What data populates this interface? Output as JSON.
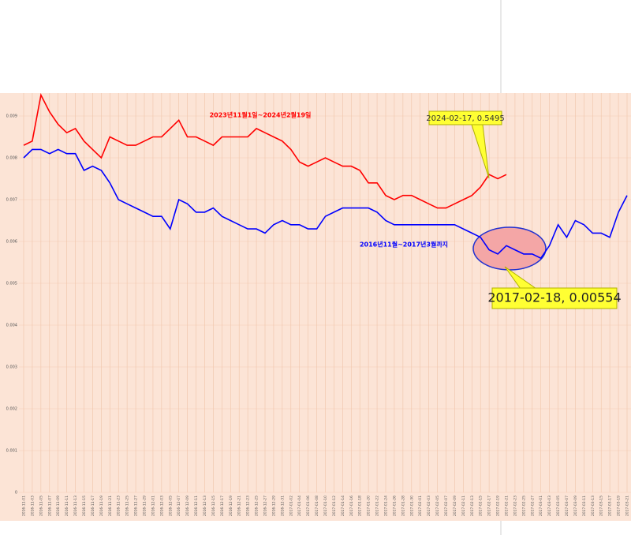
{
  "chart_data": {
    "type": "line",
    "categories": [
      "2016-11-01",
      "2016-11-03",
      "2016-11-05",
      "2016-11-07",
      "2016-11-09",
      "2016-11-11",
      "2016-11-13",
      "2016-11-15",
      "2016-11-17",
      "2016-11-19",
      "2016-11-21",
      "2016-11-23",
      "2016-11-25",
      "2016-11-27",
      "2016-11-29",
      "2016-12-01",
      "2016-12-03",
      "2016-12-05",
      "2016-12-07",
      "2016-12-09",
      "2016-12-11",
      "2016-12-13",
      "2016-12-15",
      "2016-12-17",
      "2016-12-19",
      "2016-12-21",
      "2016-12-23",
      "2016-12-25",
      "2016-12-27",
      "2016-12-29",
      "2016-12-31",
      "2017-01-02",
      "2017-01-04",
      "2017-01-06",
      "2017-01-08",
      "2017-01-10",
      "2017-01-12",
      "2017-01-14",
      "2017-01-16",
      "2017-01-18",
      "2017-01-20",
      "2017-01-22",
      "2017-01-24",
      "2017-01-26",
      "2017-01-28",
      "2017-01-30",
      "2017-02-01",
      "2017-02-03",
      "2017-02-05",
      "2017-02-07",
      "2017-02-09",
      "2017-02-11",
      "2017-02-13",
      "2017-02-15",
      "2017-02-17",
      "2017-02-19",
      "2017-02-21",
      "2017-02-23",
      "2017-02-25",
      "2017-02-27",
      "2017-03-01",
      "2017-03-03",
      "2017-03-05",
      "2017-03-07",
      "2017-03-09",
      "2017-03-11",
      "2017-03-13",
      "2017-03-15",
      "2017-03-17",
      "2017-03-19",
      "2017-03-21"
    ],
    "series": [
      {
        "name": "2023년11월1일~2024년2월19일",
        "color": "#ff0000",
        "values": [
          0.0083,
          0.0084,
          0.0095,
          0.0091,
          0.0088,
          0.0086,
          0.0087,
          0.0084,
          0.0082,
          0.008,
          0.0085,
          0.0084,
          0.0083,
          0.0083,
          0.0084,
          0.0085,
          0.0085,
          0.0087,
          0.0089,
          0.0085,
          0.0085,
          0.0084,
          0.0083,
          0.0085,
          0.0085,
          0.0085,
          0.0085,
          0.0087,
          0.0086,
          0.0085,
          0.0084,
          0.0082,
          0.0079,
          0.0078,
          0.0079,
          0.008,
          0.0079,
          0.0078,
          0.0078,
          0.0077,
          0.0074,
          0.0074,
          0.0071,
          0.007,
          0.0071,
          0.0071,
          0.007,
          0.0069,
          0.0068,
          0.0068,
          0.0069,
          0.007,
          0.0071,
          0.0073,
          0.0076,
          0.0075,
          0.0076,
          null,
          null,
          null,
          null,
          null,
          null,
          null,
          null,
          null,
          null,
          null,
          null,
          null,
          null
        ]
      },
      {
        "name": "2016년11월~2017년3월까지",
        "color": "#0000ff",
        "values": [
          0.008,
          0.0082,
          0.0082,
          0.0081,
          0.0082,
          0.0081,
          0.0081,
          0.0077,
          0.0078,
          0.0077,
          0.0074,
          0.007,
          0.0069,
          0.0068,
          0.0067,
          0.0066,
          0.0066,
          0.0063,
          0.007,
          0.0069,
          0.0067,
          0.0067,
          0.0068,
          0.0066,
          0.0065,
          0.0064,
          0.0063,
          0.0063,
          0.0062,
          0.0064,
          0.0065,
          0.0064,
          0.0064,
          0.0063,
          0.0063,
          0.0066,
          0.0067,
          0.0068,
          0.0068,
          0.0068,
          0.0068,
          0.0067,
          0.0065,
          0.0064,
          0.0064,
          0.0064,
          0.0064,
          0.0064,
          0.0064,
          0.0064,
          0.0064,
          0.0063,
          0.0062,
          0.0061,
          0.0058,
          0.0057,
          0.0059,
          0.0058,
          0.0057,
          0.0057,
          0.0056,
          0.0059,
          0.0064,
          0.0061,
          0.0065,
          0.0064,
          0.0062,
          0.0062,
          0.0061,
          0.0067,
          0.0071
        ]
      }
    ],
    "annotations": [
      "2024-02-17, 0.5495",
      "2017-02-18, 0.00554"
    ],
    "ylim": [
      0,
      0.0095
    ],
    "yticks": [
      0,
      0.001,
      0.002,
      0.003,
      0.004,
      0.005,
      0.006,
      0.007,
      0.008,
      0.009
    ],
    "grid": true
  }
}
